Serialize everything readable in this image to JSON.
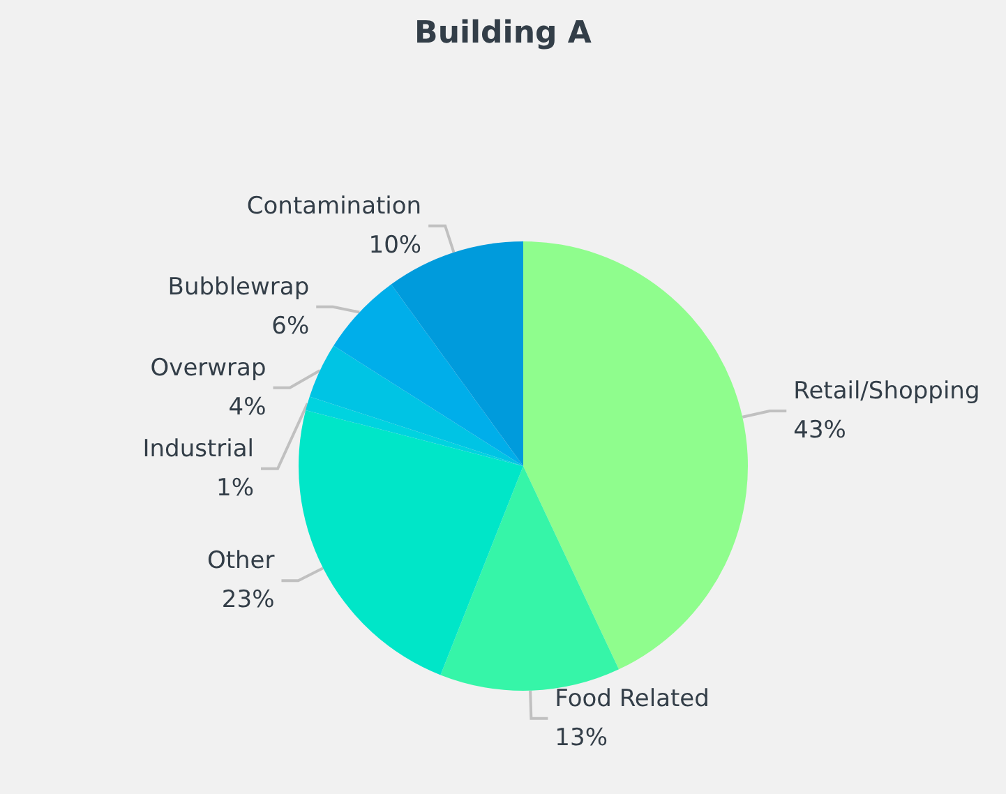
{
  "chart_data": {
    "type": "pie",
    "title": "Building A",
    "categories": [
      "Retail/Shopping",
      "Food Related",
      "Other",
      "Industrial",
      "Overwrap",
      "Bubblewrap",
      "Contamination"
    ],
    "values": [
      43,
      13,
      23,
      1,
      4,
      6,
      10
    ],
    "value_labels": [
      "43%",
      "13%",
      "23%",
      "1%",
      "4%",
      "6%",
      "10%"
    ],
    "colors": [
      "#8ffd8d",
      "#36f5a8",
      "#00e6c8",
      "#00d3df",
      "#00c4e4",
      "#00aeea",
      "#009bdc"
    ]
  }
}
